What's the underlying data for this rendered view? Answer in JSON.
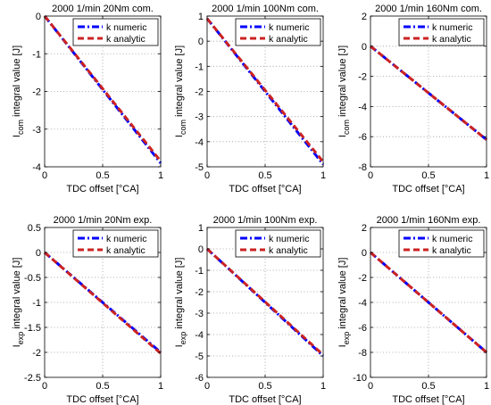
{
  "figure": {
    "legend_labels": [
      "k numeric",
      "k analytic"
    ],
    "colors": {
      "numeric": "#0000ff",
      "analytic": "#cc2222",
      "axis": "#000000",
      "grid": "#999999"
    }
  },
  "chart_data": [
    {
      "type": "line",
      "title": "2000 1/min 20Nm com.",
      "xlabel": "TDC offset [°CA]",
      "ylabel_main": "I",
      "ylabel_sub": "com",
      "ylabel_rest": " integral value [J]",
      "xlim": [
        0,
        1
      ],
      "ylim": [
        -4,
        0
      ],
      "xticks": [
        0,
        0.5,
        1
      ],
      "xtick_labels": [
        "0",
        "0.5",
        "1"
      ],
      "yticks": [
        0,
        -1,
        -2,
        -3,
        -4
      ],
      "ytick_labels": [
        "0",
        "-1",
        "-2",
        "-3",
        "-4"
      ],
      "grid": true,
      "legend_position": "top-right",
      "series": [
        {
          "name": "k numeric",
          "style": "dash-dot",
          "x": [
            0,
            1
          ],
          "y": [
            0,
            -3.9
          ]
        },
        {
          "name": "k analytic",
          "style": "dashed",
          "x": [
            0,
            1
          ],
          "y": [
            0,
            -3.85
          ]
        }
      ]
    },
    {
      "type": "line",
      "title": "2000 1/min 100Nm com.",
      "xlabel": "TDC offset [°CA]",
      "ylabel_main": "I",
      "ylabel_sub": "com",
      "ylabel_rest": " integral value [J]",
      "xlim": [
        0,
        1
      ],
      "ylim": [
        -5,
        1
      ],
      "xticks": [
        0,
        0.5,
        1
      ],
      "xtick_labels": [
        "0",
        "0.5",
        "1"
      ],
      "yticks": [
        1,
        0,
        -1,
        -2,
        -3,
        -4,
        -5
      ],
      "ytick_labels": [
        "1",
        "0",
        "-1",
        "-2",
        "-3",
        "-4",
        "-5"
      ],
      "grid": true,
      "legend_position": "top-right",
      "series": [
        {
          "name": "k numeric",
          "style": "dash-dot",
          "x": [
            0,
            1
          ],
          "y": [
            0.9,
            -4.9
          ]
        },
        {
          "name": "k analytic",
          "style": "dashed",
          "x": [
            0,
            1
          ],
          "y": [
            0.9,
            -4.8
          ]
        }
      ]
    },
    {
      "type": "line",
      "title": "2000 1/min 160Nm com.",
      "xlabel": "TDC offset [°CA]",
      "ylabel_main": "I",
      "ylabel_sub": "com",
      "ylabel_rest": " integral value [J]",
      "xlim": [
        0,
        1
      ],
      "ylim": [
        -8,
        2
      ],
      "xticks": [
        0,
        0.5,
        1
      ],
      "xtick_labels": [
        "0",
        "0.5",
        "1"
      ],
      "yticks": [
        2,
        0,
        -2,
        -4,
        -6,
        -8
      ],
      "ytick_labels": [
        "2",
        "0",
        "-2",
        "-4",
        "-6",
        "-8"
      ],
      "grid": true,
      "legend_position": "top-right",
      "series": [
        {
          "name": "k numeric",
          "style": "dash-dot",
          "x": [
            0,
            1
          ],
          "y": [
            0,
            -6.2
          ]
        },
        {
          "name": "k analytic",
          "style": "dashed",
          "x": [
            0,
            1
          ],
          "y": [
            0,
            -6.2
          ]
        }
      ]
    },
    {
      "type": "line",
      "title": "2000 1/min 20Nm exp.",
      "xlabel": "TDC offset [°CA]",
      "ylabel_main": "I",
      "ylabel_sub": "exp",
      "ylabel_rest": " integral value [J]",
      "xlim": [
        0,
        1
      ],
      "ylim": [
        -2.5,
        0.5
      ],
      "xticks": [
        0,
        0.5,
        1
      ],
      "xtick_labels": [
        "0",
        "0.5",
        "1"
      ],
      "yticks": [
        0.5,
        0,
        -0.5,
        -1,
        -1.5,
        -2,
        -2.5
      ],
      "ytick_labels": [
        "0.5",
        "0",
        "-0.5",
        "-1",
        "-1.5",
        "-2",
        "-2.5"
      ],
      "grid": true,
      "legend_position": "top-right",
      "series": [
        {
          "name": "k numeric",
          "style": "dash-dot",
          "x": [
            0,
            1
          ],
          "y": [
            0,
            -2.0
          ]
        },
        {
          "name": "k analytic",
          "style": "dashed",
          "x": [
            0,
            1
          ],
          "y": [
            0,
            -2.02
          ]
        }
      ]
    },
    {
      "type": "line",
      "title": "2000 1/min 100Nm exp.",
      "xlabel": "TDC offset [°CA]",
      "ylabel_main": "I",
      "ylabel_sub": "exp",
      "ylabel_rest": " integral value [J]",
      "xlim": [
        0,
        1
      ],
      "ylim": [
        -6,
        1
      ],
      "xticks": [
        0,
        0.5,
        1
      ],
      "xtick_labels": [
        "0",
        "0.5",
        "1"
      ],
      "yticks": [
        1,
        0,
        -1,
        -2,
        -3,
        -4,
        -5,
        -6
      ],
      "ytick_labels": [
        "1",
        "0",
        "-1",
        "-2",
        "-3",
        "-4",
        "-5",
        "-6"
      ],
      "grid": true,
      "legend_position": "top-right",
      "series": [
        {
          "name": "k numeric",
          "style": "dash-dot",
          "x": [
            0,
            1
          ],
          "y": [
            0,
            -5.0
          ]
        },
        {
          "name": "k analytic",
          "style": "dashed",
          "x": [
            0,
            1
          ],
          "y": [
            0,
            -4.95
          ]
        }
      ]
    },
    {
      "type": "line",
      "title": "2000 1/min 160Nm exp.",
      "xlabel": "TDC offset [°CA]",
      "ylabel_main": "I",
      "ylabel_sub": "exp",
      "ylabel_rest": " integral value [J]",
      "xlim": [
        0,
        1
      ],
      "ylim": [
        -10,
        2
      ],
      "xticks": [
        0,
        0.5,
        1
      ],
      "xtick_labels": [
        "0",
        "0.5",
        "1"
      ],
      "yticks": [
        2,
        0,
        -2,
        -4,
        -6,
        -8,
        -10
      ],
      "ytick_labels": [
        "2",
        "0",
        "-2",
        "-4",
        "-6",
        "-8",
        "-10"
      ],
      "grid": true,
      "legend_position": "top-right",
      "series": [
        {
          "name": "k numeric",
          "style": "dash-dot",
          "x": [
            0,
            1
          ],
          "y": [
            0,
            -8.0
          ]
        },
        {
          "name": "k analytic",
          "style": "dashed",
          "x": [
            0,
            1
          ],
          "y": [
            0,
            -8.0
          ]
        }
      ]
    }
  ]
}
